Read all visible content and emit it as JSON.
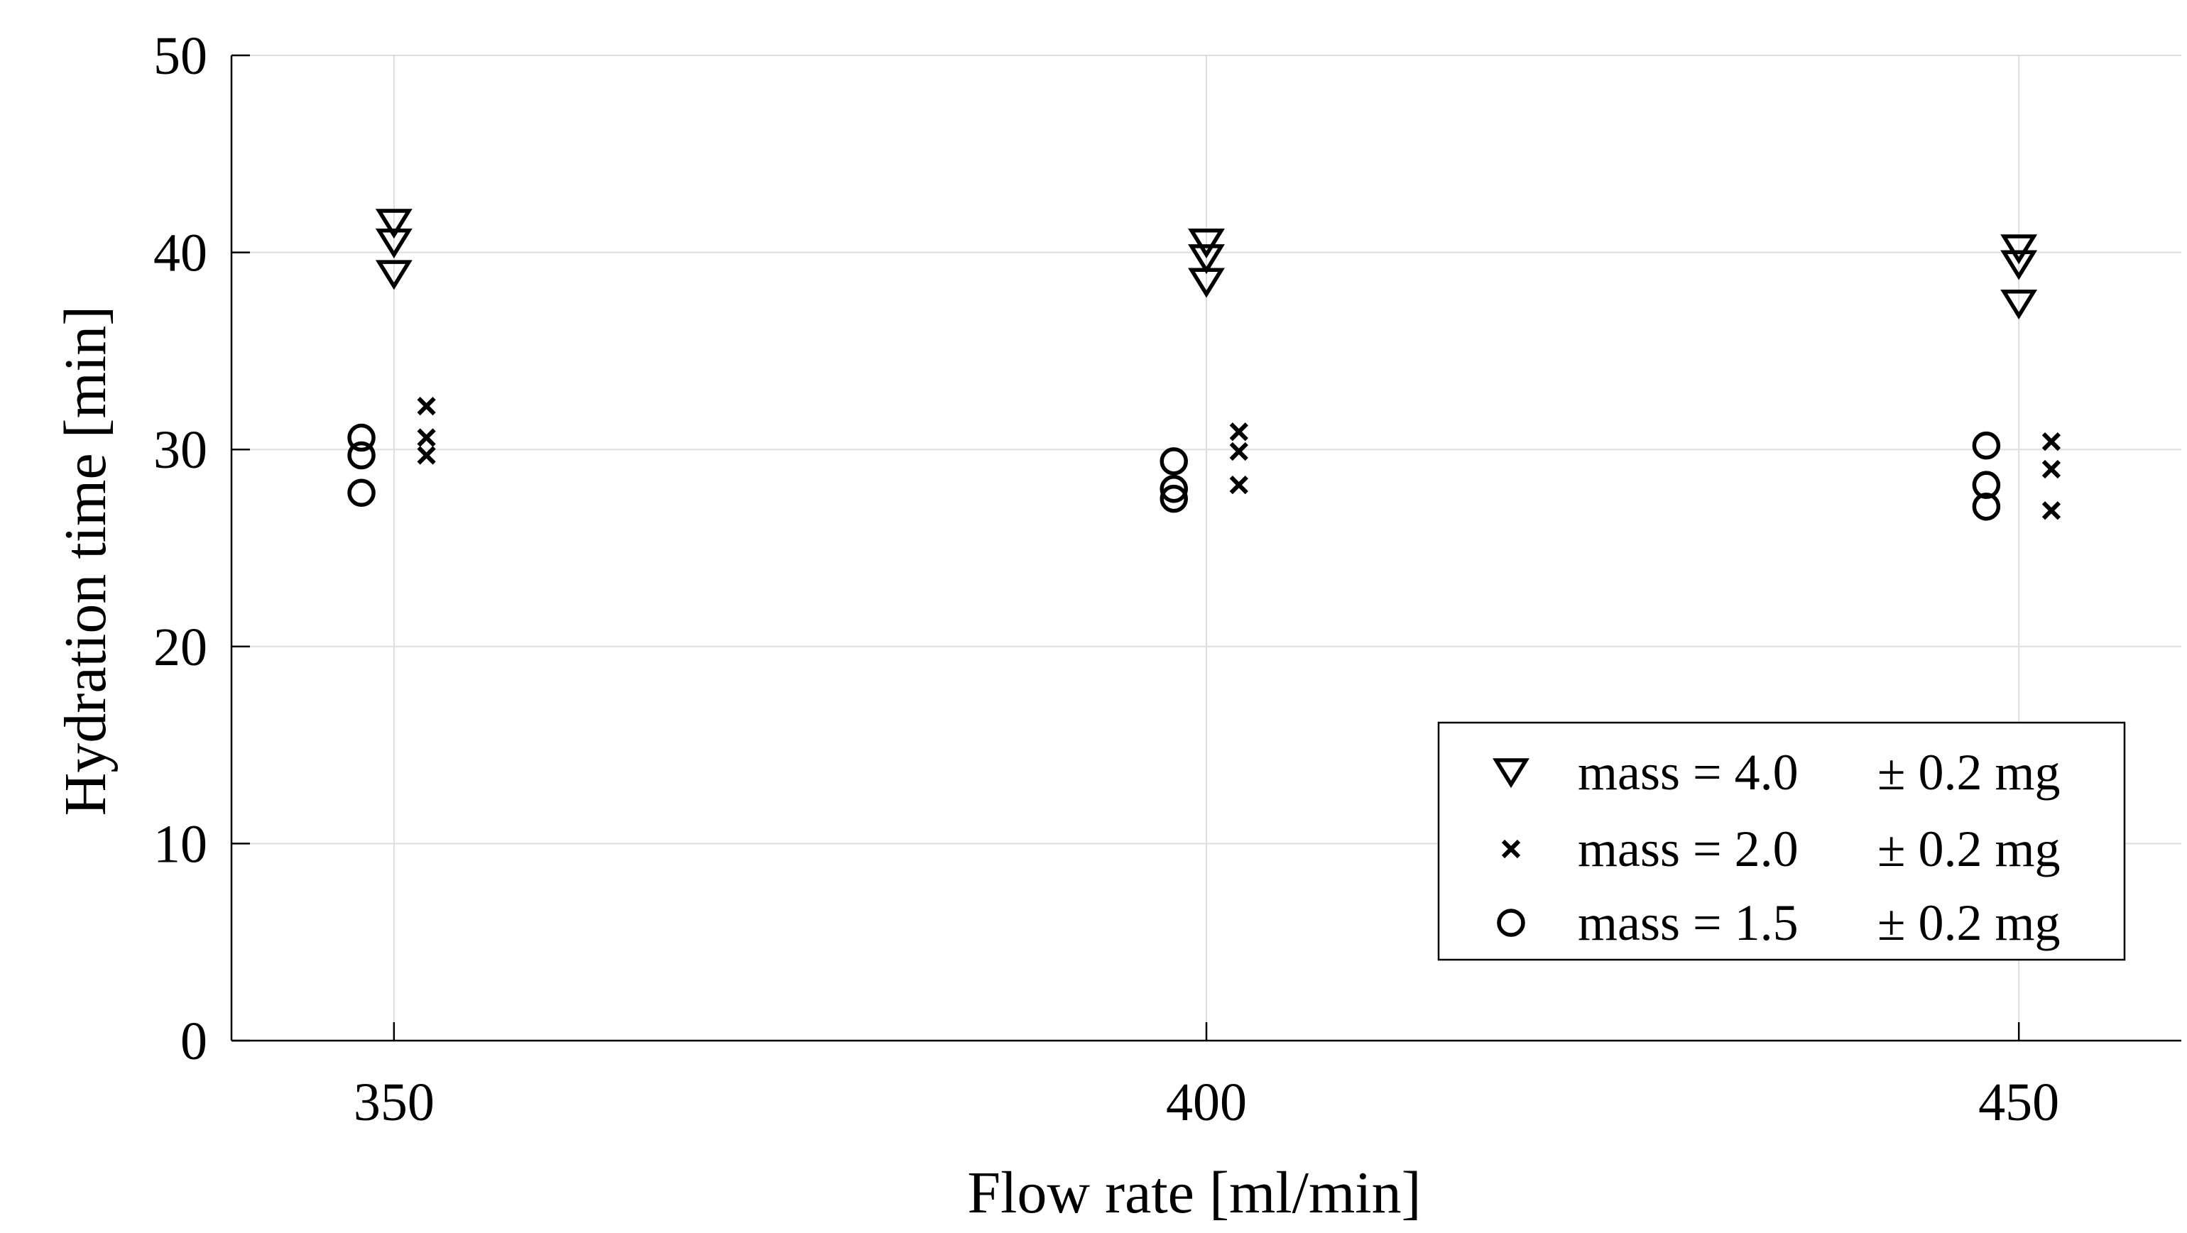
{
  "chart_data": {
    "type": "scatter",
    "title": "",
    "xlabel": "Flow rate [ml/min]",
    "ylabel": "Hydration time [min]",
    "xlim": [
      340,
      460
    ],
    "ylim": [
      0,
      50
    ],
    "x_ticks": [
      350,
      400,
      450
    ],
    "y_ticks": [
      0,
      10,
      20,
      30,
      40,
      50
    ],
    "grid": true,
    "legend_position": "bottom-right",
    "series": [
      {
        "name": "mass = 4.0",
        "tolerance": "± 0.2 mg",
        "marker": "triangle-down",
        "points": [
          {
            "x": 350,
            "y": 41.5
          },
          {
            "x": 350,
            "y": 40.5
          },
          {
            "x": 350,
            "y": 38.9
          },
          {
            "x": 400,
            "y": 40.5
          },
          {
            "x": 400,
            "y": 39.7
          },
          {
            "x": 400,
            "y": 38.5
          },
          {
            "x": 450,
            "y": 40.2
          },
          {
            "x": 450,
            "y": 39.4
          },
          {
            "x": 450,
            "y": 37.4
          }
        ]
      },
      {
        "name": "mass = 2.0",
        "tolerance": "± 0.2 mg",
        "marker": "cross",
        "points": [
          {
            "x": 352,
            "y": 32.2
          },
          {
            "x": 352,
            "y": 30.6
          },
          {
            "x": 352,
            "y": 29.7
          },
          {
            "x": 402,
            "y": 30.9
          },
          {
            "x": 402,
            "y": 29.9
          },
          {
            "x": 402,
            "y": 28.2
          },
          {
            "x": 452,
            "y": 30.4
          },
          {
            "x": 452,
            "y": 29.0
          },
          {
            "x": 452,
            "y": 26.9
          }
        ]
      },
      {
        "name": "mass = 1.5",
        "tolerance": "± 0.2 mg",
        "marker": "circle",
        "points": [
          {
            "x": 348,
            "y": 30.6
          },
          {
            "x": 348,
            "y": 29.7
          },
          {
            "x": 348,
            "y": 27.8
          },
          {
            "x": 398,
            "y": 29.4
          },
          {
            "x": 398,
            "y": 28.0
          },
          {
            "x": 398,
            "y": 27.5
          },
          {
            "x": 448,
            "y": 30.2
          },
          {
            "x": 448,
            "y": 28.2
          },
          {
            "x": 448,
            "y": 27.1
          }
        ]
      }
    ]
  }
}
